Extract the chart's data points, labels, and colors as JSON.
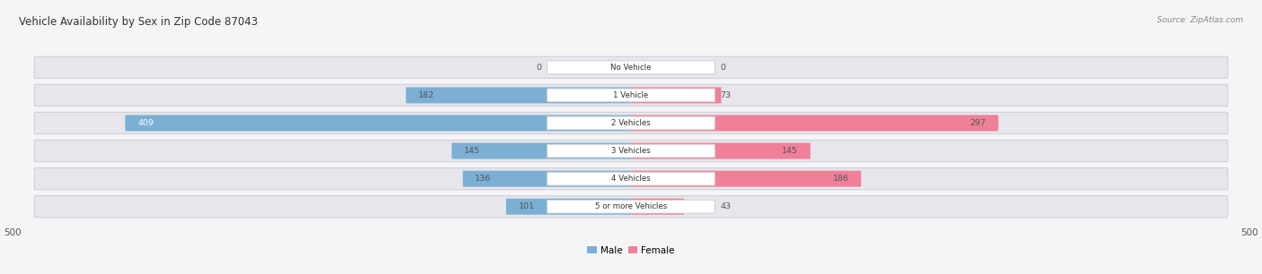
{
  "title": "Vehicle Availability by Sex in Zip Code 87043",
  "source": "Source: ZipAtlas.com",
  "categories": [
    "No Vehicle",
    "1 Vehicle",
    "2 Vehicles",
    "3 Vehicles",
    "4 Vehicles",
    "5 or more Vehicles"
  ],
  "male_values": [
    0,
    182,
    409,
    145,
    136,
    101
  ],
  "female_values": [
    0,
    73,
    297,
    145,
    186,
    43
  ],
  "male_color": "#7bafd4",
  "female_color": "#f08098",
  "row_bg_color": "#e6e6ec",
  "row_bg_edge_color": "#d0d0d8",
  "label_bg_color": "#ffffff",
  "axis_max": 500,
  "legend_male": "Male",
  "legend_female": "Female",
  "fig_bg_color": "#f5f5f8",
  "title_color": "#333333",
  "source_color": "#888888",
  "value_color_dark": "#555555",
  "value_color_light": "#ffffff",
  "fig_width": 14.06,
  "fig_height": 3.06,
  "dpi": 100
}
